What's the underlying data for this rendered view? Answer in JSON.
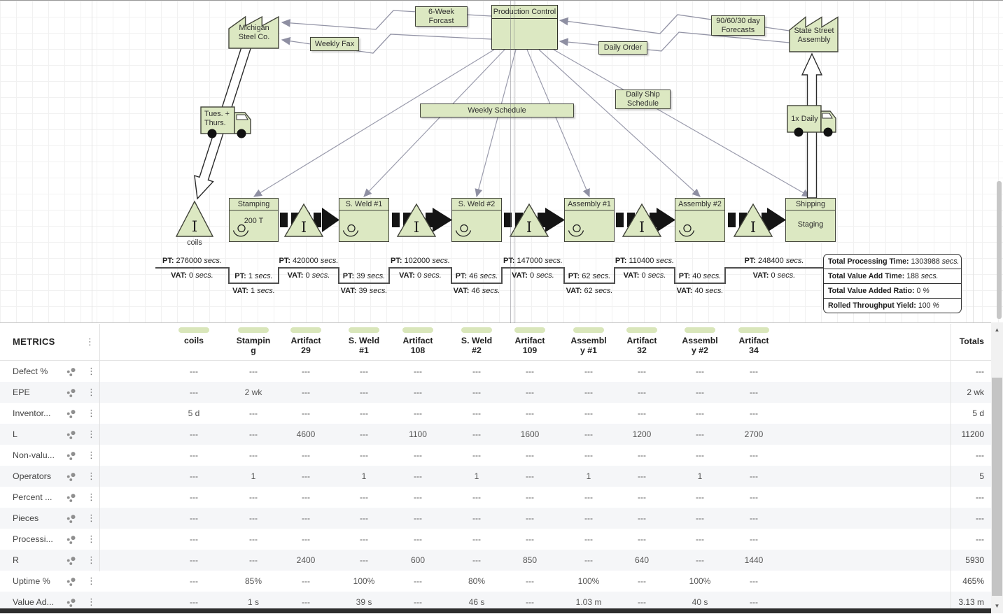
{
  "icons": {
    "kebab": "⋮",
    "up_arrow": "▲",
    "down_arrow": "▼"
  },
  "colors": {
    "shape_fill": "#dce8c2",
    "shape_border": "#42443a",
    "header_pill": "#d9e6ba",
    "connector": "#9394a6"
  },
  "diagram": {
    "labels": {
      "pt": "PT",
      "vat": "VAT",
      "secs": "secs."
    },
    "factories": [
      {
        "lines": [
          "Michigan",
          "Steel Co."
        ]
      },
      {
        "lines": [
          "State Street",
          "Assembly"
        ]
      }
    ],
    "info_boxes": [
      {
        "lines": [
          "6-Week",
          "Forcast"
        ]
      },
      {
        "lines": [
          "Production Control"
        ]
      },
      {
        "lines": [
          "90/60/30 day",
          "Forecasts"
        ]
      },
      {
        "lines": [
          "Weekly Fax"
        ]
      },
      {
        "lines": [
          "Daily Order"
        ]
      },
      {
        "lines": [
          "Daily Ship",
          "Schedule"
        ]
      },
      {
        "lines": [
          "Weekly Schedule"
        ]
      }
    ],
    "trucks": [
      {
        "lines": [
          "Tues. +",
          "Thurs."
        ]
      },
      {
        "lines": [
          "1x Daily"
        ]
      }
    ],
    "inventory": {
      "symbol": "I",
      "coils_label": "coils"
    },
    "processes": [
      {
        "title": "Stamping",
        "detail": "200 T"
      },
      {
        "title": "S. Weld #1",
        "detail": ""
      },
      {
        "title": "S. Weld #2",
        "detail": ""
      },
      {
        "title": "Assembly #1",
        "detail": ""
      },
      {
        "title": "Assembly #2",
        "detail": ""
      },
      {
        "title": "Shipping",
        "detail": "Staging"
      }
    ],
    "timeline": {
      "segments": [
        {
          "kind": "wait",
          "pt": "276000",
          "vat": "0"
        },
        {
          "kind": "process",
          "pt": "1",
          "vat": "1"
        },
        {
          "kind": "wait",
          "pt": "420000",
          "vat": "0"
        },
        {
          "kind": "process",
          "pt": "39",
          "vat": "39"
        },
        {
          "kind": "wait",
          "pt": "102000",
          "vat": "0"
        },
        {
          "kind": "process",
          "pt": "46",
          "vat": "46"
        },
        {
          "kind": "wait",
          "pt": "147000",
          "vat": "0"
        },
        {
          "kind": "process",
          "pt": "62",
          "vat": "62"
        },
        {
          "kind": "wait",
          "pt": "110400",
          "vat": "0"
        },
        {
          "kind": "process",
          "pt": "40",
          "vat": "40"
        },
        {
          "kind": "wait",
          "pt": "248400",
          "vat": "0"
        }
      ],
      "summary": [
        {
          "label": "Total Processing Time",
          "value": "1303988",
          "unit": "secs."
        },
        {
          "label": "Total Value Add Time",
          "value": "188",
          "unit": "secs."
        },
        {
          "label": "Total Value Added Ratio",
          "value": "0",
          "unit": "%"
        },
        {
          "label": "Rolled Throughput Yield",
          "value": "100",
          "unit": "%"
        }
      ]
    }
  },
  "table": {
    "title": "METRICS",
    "totals_label": "Totals",
    "columns": [
      "coils",
      "Stamping",
      "Artifact 29",
      "S. Weld #1",
      "Artifact 108",
      "S. Weld #2",
      "Artifact 109",
      "Assembly #1",
      "Artifact 32",
      "Assembly #2",
      "Artifact 34"
    ],
    "rows": [
      {
        "label": "Defect %",
        "values": [
          "---",
          "---",
          "---",
          "---",
          "---",
          "---",
          "---",
          "---",
          "---",
          "---",
          "---"
        ],
        "total": "---"
      },
      {
        "label": "EPE",
        "values": [
          "---",
          "2 wk",
          "---",
          "---",
          "---",
          "---",
          "---",
          "---",
          "---",
          "---",
          "---"
        ],
        "total": "2 wk"
      },
      {
        "label": "Inventor...",
        "values": [
          "5 d",
          "---",
          "---",
          "---",
          "---",
          "---",
          "---",
          "---",
          "---",
          "---",
          "---"
        ],
        "total": "5 d"
      },
      {
        "label": "L",
        "values": [
          "---",
          "---",
          "4600",
          "---",
          "1100",
          "---",
          "1600",
          "---",
          "1200",
          "---",
          "2700"
        ],
        "total": "11200"
      },
      {
        "label": "Non-valu...",
        "values": [
          "---",
          "---",
          "---",
          "---",
          "---",
          "---",
          "---",
          "---",
          "---",
          "---",
          "---"
        ],
        "total": "---"
      },
      {
        "label": "Operators",
        "values": [
          "---",
          "1",
          "---",
          "1",
          "---",
          "1",
          "---",
          "1",
          "---",
          "1",
          "---"
        ],
        "total": "5"
      },
      {
        "label": "Percent ...",
        "values": [
          "---",
          "---",
          "---",
          "---",
          "---",
          "---",
          "---",
          "---",
          "---",
          "---",
          "---"
        ],
        "total": "---"
      },
      {
        "label": "Pieces",
        "values": [
          "---",
          "---",
          "---",
          "---",
          "---",
          "---",
          "---",
          "---",
          "---",
          "---",
          "---"
        ],
        "total": "---"
      },
      {
        "label": "Processi...",
        "values": [
          "---",
          "---",
          "---",
          "---",
          "---",
          "---",
          "---",
          "---",
          "---",
          "---",
          "---"
        ],
        "total": "---"
      },
      {
        "label": "R",
        "values": [
          "---",
          "---",
          "2400",
          "---",
          "600",
          "---",
          "850",
          "---",
          "640",
          "---",
          "1440"
        ],
        "total": "5930"
      },
      {
        "label": "Uptime %",
        "values": [
          "---",
          "85%",
          "---",
          "100%",
          "---",
          "80%",
          "---",
          "100%",
          "---",
          "100%",
          "---"
        ],
        "total": "465%"
      },
      {
        "label": "Value Ad...",
        "values": [
          "---",
          "1 s",
          "---",
          "39 s",
          "---",
          "46 s",
          "---",
          "1.03 m",
          "---",
          "40 s",
          "---"
        ],
        "total": "3.13 m"
      }
    ]
  }
}
